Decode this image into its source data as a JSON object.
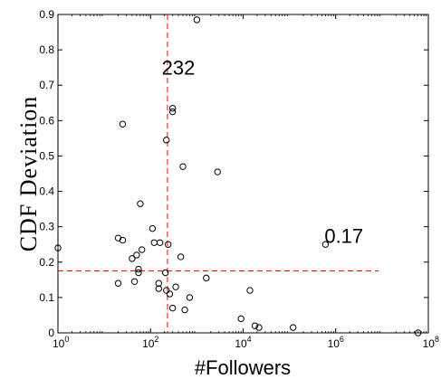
{
  "chart_data": {
    "type": "scatter",
    "xlabel": "#Followers",
    "ylabel": "CDF Deviation",
    "xscale": "log",
    "xlim": [
      1,
      100000000
    ],
    "ylim": [
      0,
      0.9
    ],
    "grid": false,
    "legend": "none",
    "marker": "open-circle",
    "x_ticks": [
      {
        "value": 1,
        "base": "10",
        "exp": "0"
      },
      {
        "value": 100,
        "base": "10",
        "exp": "2"
      },
      {
        "value": 10000,
        "base": "10",
        "exp": "4"
      },
      {
        "value": 1000000,
        "base": "10",
        "exp": "6"
      },
      {
        "value": 100000000,
        "base": "10",
        "exp": "8"
      }
    ],
    "y_ticks": [
      "0",
      "0.1",
      "0.2",
      "0.3",
      "0.4",
      "0.5",
      "0.6",
      "0.7",
      "0.8",
      "0.9"
    ],
    "threshold_lines": {
      "x": 232,
      "y": 0.175,
      "color": "#ff0000"
    },
    "annotations": [
      {
        "text": "232",
        "x": 400,
        "y": 0.73
      },
      {
        "text": "0.17",
        "x": 1500000,
        "y": 0.255
      }
    ],
    "points": [
      {
        "x": 1,
        "y": 0.24
      },
      {
        "x": 1000,
        "y": 0.885
      },
      {
        "x": 300,
        "y": 0.635
      },
      {
        "x": 300,
        "y": 0.625
      },
      {
        "x": 25,
        "y": 0.59
      },
      {
        "x": 220,
        "y": 0.545
      },
      {
        "x": 500,
        "y": 0.47
      },
      {
        "x": 2800,
        "y": 0.455
      },
      {
        "x": 60,
        "y": 0.365
      },
      {
        "x": 110,
        "y": 0.295
      },
      {
        "x": 20,
        "y": 0.268
      },
      {
        "x": 25,
        "y": 0.262
      },
      {
        "x": 120,
        "y": 0.255
      },
      {
        "x": 160,
        "y": 0.255
      },
      {
        "x": 240,
        "y": 0.25
      },
      {
        "x": 600000,
        "y": 0.25
      },
      {
        "x": 65,
        "y": 0.235
      },
      {
        "x": 50,
        "y": 0.22
      },
      {
        "x": 450,
        "y": 0.215
      },
      {
        "x": 40,
        "y": 0.21
      },
      {
        "x": 55,
        "y": 0.18
      },
      {
        "x": 55,
        "y": 0.17
      },
      {
        "x": 210,
        "y": 0.17
      },
      {
        "x": 1600,
        "y": 0.155
      },
      {
        "x": 45,
        "y": 0.145
      },
      {
        "x": 20,
        "y": 0.14
      },
      {
        "x": 150,
        "y": 0.14
      },
      {
        "x": 350,
        "y": 0.13
      },
      {
        "x": 150,
        "y": 0.125
      },
      {
        "x": 220,
        "y": 0.12
      },
      {
        "x": 14000,
        "y": 0.12
      },
      {
        "x": 260,
        "y": 0.11
      },
      {
        "x": 700,
        "y": 0.1
      },
      {
        "x": 9000,
        "y": 0.04
      },
      {
        "x": 550,
        "y": 0.065
      },
      {
        "x": 18000,
        "y": 0.02
      },
      {
        "x": 22000,
        "y": 0.015
      },
      {
        "x": 120000,
        "y": 0.015
      },
      {
        "x": 300,
        "y": 0.07
      },
      {
        "x": 60000000,
        "y": 0.0
      }
    ]
  }
}
